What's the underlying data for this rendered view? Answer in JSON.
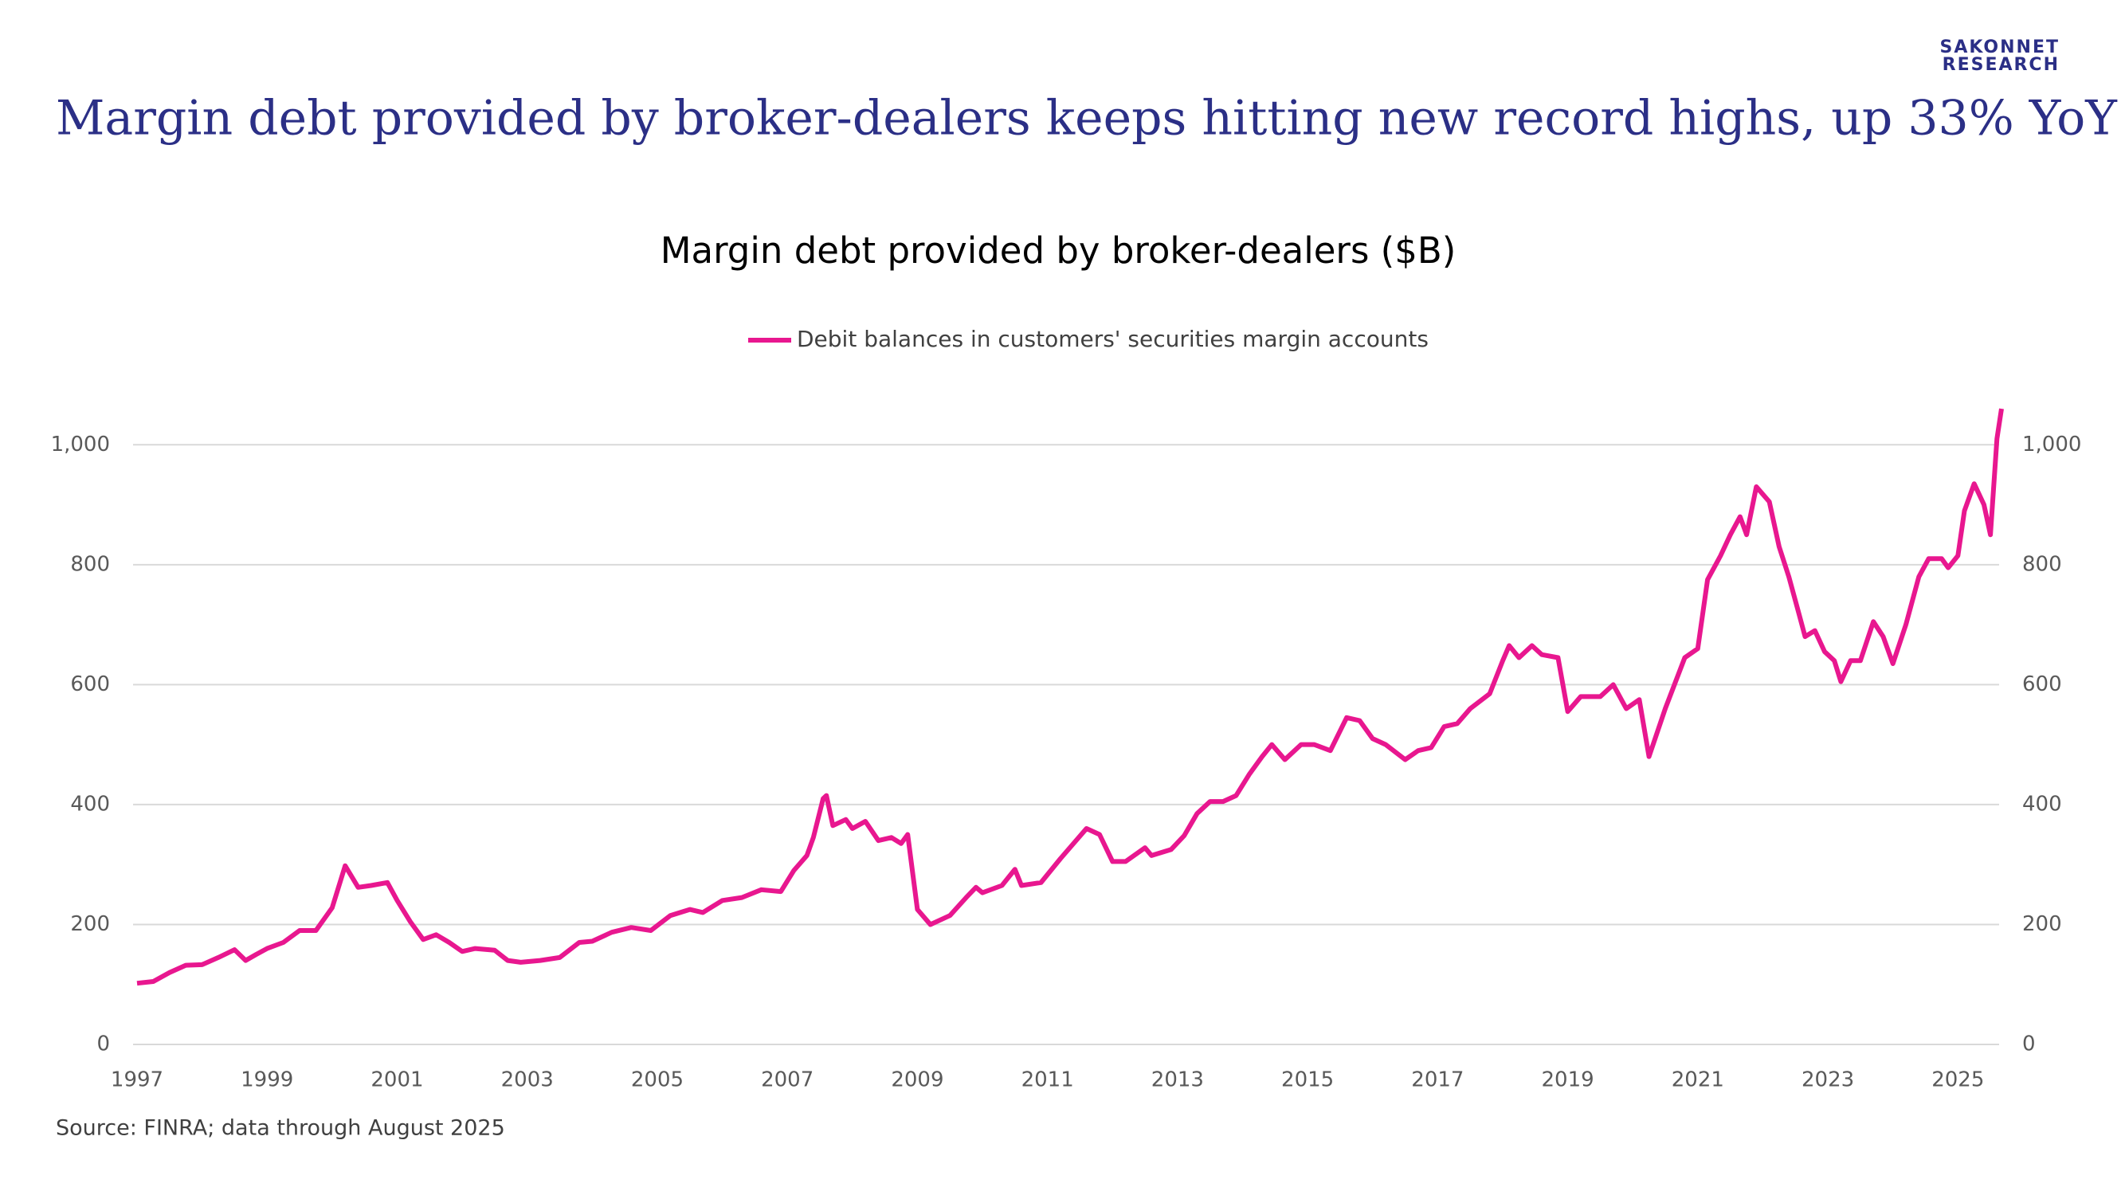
{
  "logo": [
    "SAKONNET",
    "RESEARCH"
  ],
  "slide_title": "Margin debt provided by broker-dealers keeps hitting new record highs, up 33% YoY",
  "source": "Source: FINRA; data through August 2025",
  "chart_data": {
    "type": "line",
    "title": "Margin debt provided by broker-dealers ($B)",
    "legend": "top",
    "grid": true,
    "x": [
      1997.0,
      1997.25,
      1997.5,
      1997.75,
      1998.0,
      1998.25,
      1998.5,
      1998.67,
      1998.83,
      1999.0,
      1999.25,
      1999.5,
      1999.75,
      2000.0,
      2000.2,
      2000.4,
      2000.6,
      2000.85,
      2001.0,
      2001.2,
      2001.4,
      2001.6,
      2001.8,
      2002.0,
      2002.2,
      2002.5,
      2002.7,
      2002.9,
      2003.2,
      2003.5,
      2003.8,
      2004.0,
      2004.3,
      2004.6,
      2004.9,
      2005.2,
      2005.5,
      2005.7,
      2006.0,
      2006.3,
      2006.6,
      2006.9,
      2007.1,
      2007.3,
      2007.4,
      2007.55,
      2007.6,
      2007.7,
      2007.9,
      2008.0,
      2008.2,
      2008.4,
      2008.6,
      2008.75,
      2008.85,
      2009.0,
      2009.2,
      2009.5,
      2009.75,
      2009.9,
      2010.0,
      2010.3,
      2010.5,
      2010.6,
      2010.9,
      2011.2,
      2011.4,
      2011.6,
      2011.8,
      2012.0,
      2012.2,
      2012.5,
      2012.6,
      2012.9,
      2013.1,
      2013.3,
      2013.5,
      2013.7,
      2013.9,
      2014.1,
      2014.3,
      2014.45,
      2014.65,
      2014.9,
      2015.1,
      2015.35,
      2015.6,
      2015.8,
      2016.0,
      2016.2,
      2016.5,
      2016.7,
      2016.9,
      2017.1,
      2017.3,
      2017.5,
      2017.8,
      2018.0,
      2018.1,
      2018.25,
      2018.45,
      2018.6,
      2018.85,
      2019.0,
      2019.2,
      2019.5,
      2019.7,
      2019.9,
      2020.1,
      2020.25,
      2020.5,
      2020.8,
      2021.0,
      2021.15,
      2021.35,
      2021.5,
      2021.65,
      2021.75,
      2021.9,
      2022.1,
      2022.25,
      2022.4,
      2022.55,
      2022.65,
      2022.8,
      2022.95,
      2023.1,
      2023.2,
      2023.35,
      2023.5,
      2023.7,
      2023.85,
      2024.0,
      2024.2,
      2024.4,
      2024.55,
      2024.75,
      2024.85,
      2025.0,
      2025.1,
      2025.25,
      2025.4,
      2025.5,
      2025.6,
      2025.67
    ],
    "series": [
      {
        "name": "Debit balances in customers' securities margin accounts",
        "color": "#e8178f",
        "values": [
          102,
          105,
          120,
          132,
          133,
          145,
          158,
          140,
          150,
          160,
          170,
          190,
          190,
          228,
          298,
          262,
          265,
          270,
          240,
          205,
          175,
          183,
          170,
          155,
          160,
          157,
          140,
          137,
          140,
          145,
          170,
          172,
          187,
          195,
          190,
          215,
          225,
          220,
          240,
          245,
          258,
          255,
          290,
          315,
          345,
          410,
          415,
          365,
          375,
          360,
          372,
          340,
          345,
          335,
          350,
          225,
          200,
          215,
          245,
          262,
          253,
          265,
          292,
          265,
          270,
          310,
          335,
          360,
          350,
          305,
          305,
          328,
          315,
          325,
          348,
          385,
          405,
          405,
          415,
          450,
          480,
          500,
          475,
          500,
          500,
          490,
          545,
          540,
          510,
          500,
          475,
          490,
          495,
          530,
          535,
          560,
          585,
          640,
          665,
          645,
          665,
          650,
          645,
          555,
          580,
          580,
          600,
          560,
          575,
          480,
          560,
          645,
          660,
          775,
          815,
          850,
          880,
          850,
          930,
          905,
          830,
          780,
          720,
          680,
          690,
          655,
          640,
          605,
          640,
          640,
          705,
          680,
          635,
          700,
          780,
          810,
          810,
          795,
          815,
          890,
          935,
          900,
          850,
          1010,
          1060
        ]
      }
    ],
    "xlim": [
      1997,
      2025.67
    ],
    "xticks": [
      1997,
      1999,
      2001,
      2003,
      2005,
      2007,
      2009,
      2011,
      2013,
      2015,
      2017,
      2019,
      2021,
      2023,
      2025
    ],
    "ylim": [
      0,
      1100
    ],
    "yticks": [
      0,
      200,
      400,
      600,
      800,
      {
        "value": 1000,
        "label": "1,000"
      }
    ],
    "y2lim": [
      0,
      1100
    ],
    "y2ticks": [
      0,
      200,
      400,
      600,
      800,
      {
        "value": 1000,
        "label": "1,000"
      }
    ]
  }
}
